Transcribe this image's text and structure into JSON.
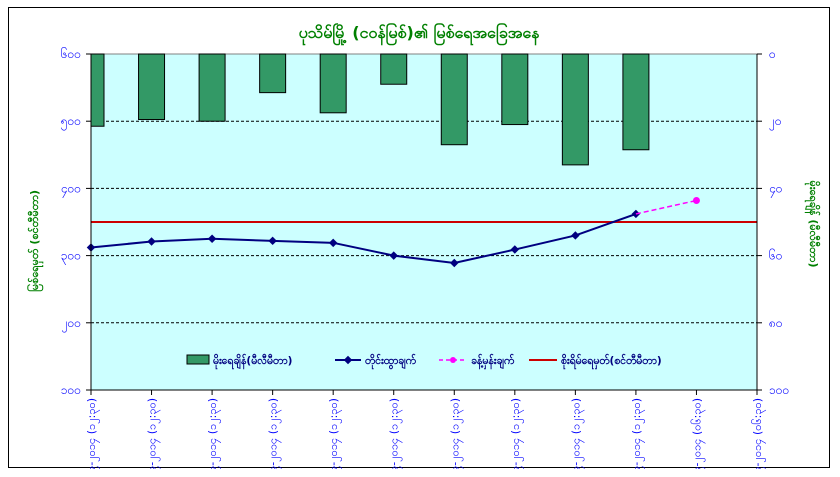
{
  "chart_data": {
    "type": "bar",
    "title": "ပုသိမ်မြို့ (ငဝန်မြစ်)၏ မြစ်ရေအခြေအနေ",
    "ylabel_left": "မြစ်ရေမှတ် (စင်တီမီတာ)",
    "ylabel_right": "မိုးရေချိန် (မီလီမီတာ)",
    "left_axis": {
      "min": 100,
      "max": 600,
      "ticks": [
        100,
        200,
        300,
        400,
        500,
        600
      ],
      "tick_labels": [
        "၁၀၀",
        "၂၀၀",
        "၃၀၀",
        "၄၀၀",
        "၅၀၀",
        "၆၀၀"
      ]
    },
    "right_axis": {
      "min": 0,
      "max": 100,
      "reversed": true,
      "ticks": [
        0,
        20,
        40,
        60,
        80,
        100
      ],
      "tick_labels": [
        "၀",
        "၂၀",
        "၄၀",
        "၆၀",
        "၈၀",
        "၁၀၀"
      ]
    },
    "categories": [
      "၁၄-၉-၂၀၁၄ (၁၂:၃၀)",
      "၁၅-၉-၂၀၁၄ (၁၂:၃၀)",
      "၁၆-၉-၂၀၁၄ (၁၂:၃၀)",
      "၁၇-၉-၂၀၁၄ (၁၂:၃၀)",
      "၁၈-၉-၂၀၁၄ (၁၂:၃၀)",
      "၁၉-၉-၂၀၁၄ (၁၂:၃၀)",
      "၂၀-၉-၂၀၁၄ (၁၂:၃၀)",
      "၂၁-၉-၂၀၁၄ (၁၂:၃၀)",
      "၂၂-၉-၂၀၁၄ (၁၂:၃၀)",
      "၂၃-၉-၂၀၁၄ (၁၂:၃၀)",
      "၂၄-၉-၂၀၁၄ (၀၆:၃၀)",
      "၂၅-၉-၂၀၁၄ (၀၆:၃၀)"
    ],
    "series": [
      {
        "name": "မိုးရေချိန်(မီလီမီတာ)",
        "kind": "bar",
        "axis": "right",
        "color": "#339966",
        "values": [
          21.5,
          19.5,
          20,
          11.5,
          17.5,
          9,
          27,
          21,
          33,
          28.5,
          null,
          null
        ]
      },
      {
        "name": "တိုင်းထွာချက်",
        "kind": "line",
        "axis": "left",
        "color": "#000080",
        "values": [
          312,
          321,
          325,
          322,
          319,
          300,
          289,
          309,
          330,
          362,
          null,
          null
        ]
      },
      {
        "name": "ခန့်မှန်းချက်",
        "kind": "line-dashed",
        "axis": "left",
        "color": "#ff00ff",
        "values": [
          null,
          null,
          null,
          null,
          null,
          null,
          null,
          null,
          null,
          362,
          382,
          null
        ]
      },
      {
        "name": "စိုးရိမ်ရေမှတ်(စင်တီမီတာ)",
        "kind": "hline",
        "axis": "left",
        "color": "#cc0000",
        "value": 350
      }
    ],
    "grid": "horizontal-dashed",
    "legend_position": "inside-bottom",
    "plot_background": "#ccffff",
    "colors": {
      "title": "#008000",
      "left_axis_labels": "#0000ff",
      "right_axis_labels": "#0000ff",
      "axis_titles": "#008000",
      "category_labels": "#0000ff"
    }
  }
}
